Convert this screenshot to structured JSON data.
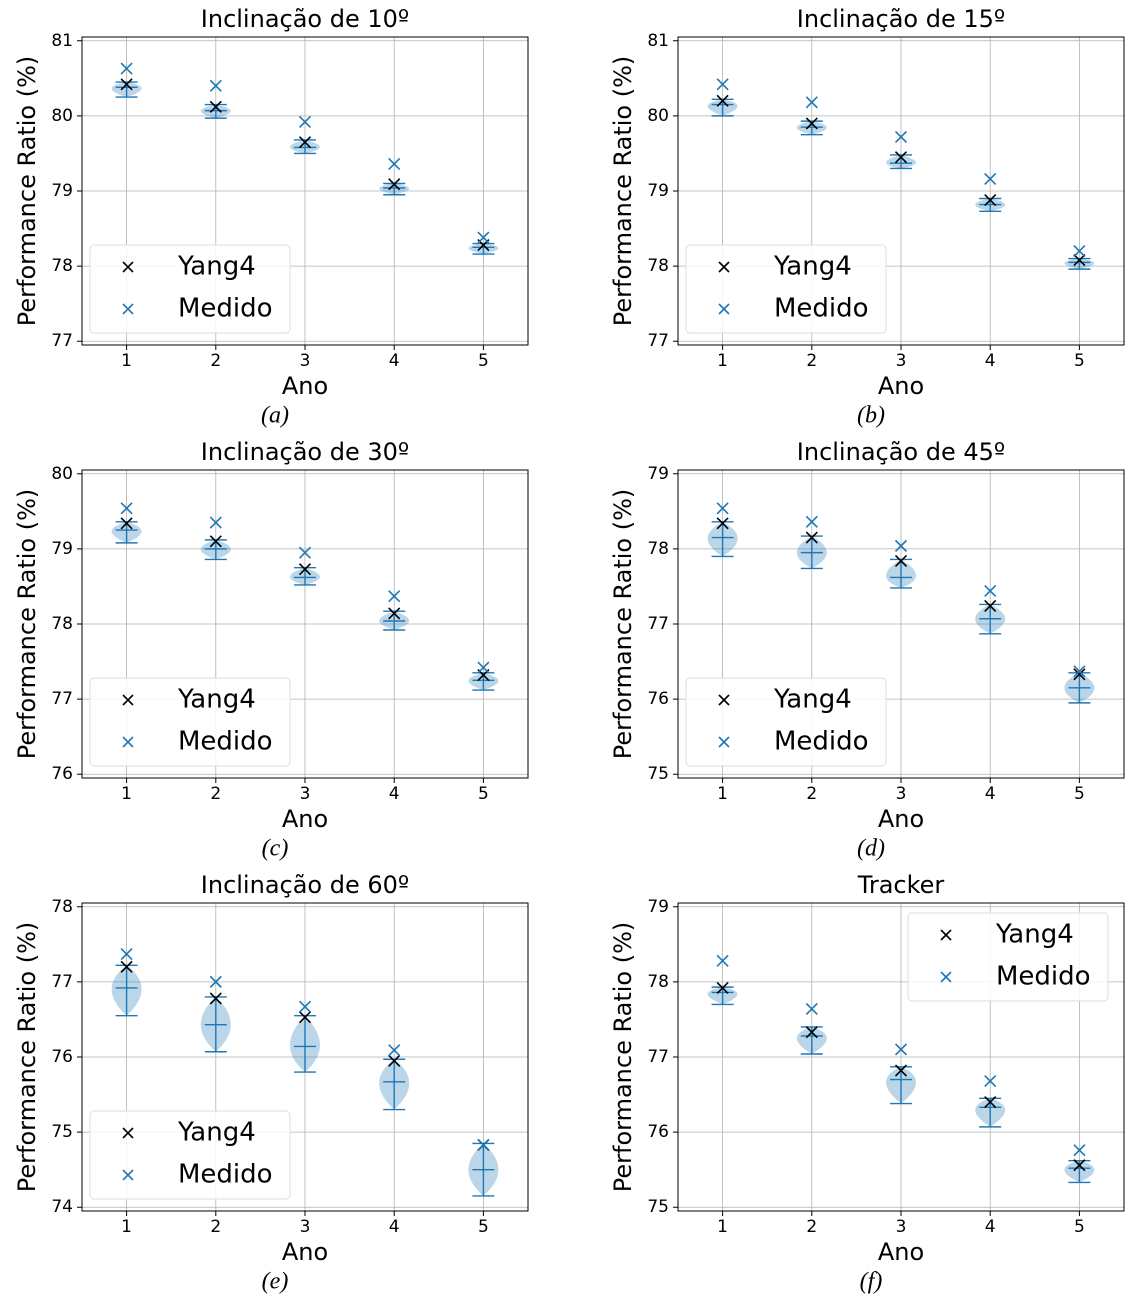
{
  "chart_data": [
    {
      "type": "violin",
      "title": "Inclinação de 10º",
      "caption": "(a)",
      "xlabel": "Ano",
      "ylabel": "Performance Ratio (%)",
      "x": [
        1,
        2,
        3,
        4,
        5
      ],
      "xlim": [
        0.5,
        5.5
      ],
      "xticks": [
        1,
        2,
        3,
        4,
        5
      ],
      "ylim": [
        76.95,
        81.05
      ],
      "yticks": [
        77,
        78,
        79,
        80,
        81
      ],
      "grid": true,
      "legend": "lower left",
      "violin": {
        "color": "#1f77b4",
        "min": [
          80.25,
          79.97,
          79.5,
          78.95,
          78.16
        ],
        "max": [
          80.45,
          80.15,
          79.68,
          79.1,
          78.3
        ],
        "mean": [
          80.38,
          80.07,
          79.58,
          79.04,
          78.25
        ]
      },
      "series": [
        {
          "name": "Yang4",
          "color": "#000000",
          "values": [
            80.42,
            80.12,
            79.65,
            79.09,
            78.28
          ]
        },
        {
          "name": "Medido",
          "color": "#1f77b4",
          "values": [
            80.63,
            80.4,
            79.92,
            79.36,
            78.38
          ]
        }
      ]
    },
    {
      "type": "violin",
      "title": "Inclinação de 15º",
      "caption": "(b)",
      "xlabel": "Ano",
      "ylabel": "Performance Ratio (%)",
      "x": [
        1,
        2,
        3,
        4,
        5
      ],
      "xlim": [
        0.5,
        5.5
      ],
      "xticks": [
        1,
        2,
        3,
        4,
        5
      ],
      "ylim": [
        76.95,
        81.05
      ],
      "yticks": [
        77,
        78,
        79,
        80,
        81
      ],
      "grid": true,
      "legend": "lower left",
      "violin": {
        "color": "#1f77b4",
        "min": [
          80.0,
          79.75,
          79.3,
          78.73,
          77.96
        ],
        "max": [
          80.22,
          79.93,
          79.48,
          78.9,
          78.1
        ],
        "mean": [
          80.15,
          79.85,
          79.37,
          78.82,
          78.05
        ]
      },
      "series": [
        {
          "name": "Yang4",
          "color": "#000000",
          "values": [
            80.2,
            79.9,
            79.45,
            78.88,
            78.08
          ]
        },
        {
          "name": "Medido",
          "color": "#1f77b4",
          "values": [
            80.42,
            80.18,
            79.72,
            79.16,
            78.2
          ]
        }
      ]
    },
    {
      "type": "violin",
      "title": "Inclinação de 30º",
      "caption": "(c)",
      "xlabel": "Ano",
      "ylabel": "Performance Ratio (%)",
      "x": [
        1,
        2,
        3,
        4,
        5
      ],
      "xlim": [
        0.5,
        5.5
      ],
      "xticks": [
        1,
        2,
        3,
        4,
        5
      ],
      "ylim": [
        75.95,
        80.05
      ],
      "yticks": [
        76,
        77,
        78,
        79,
        80
      ],
      "grid": true,
      "legend": "lower left",
      "violin": {
        "color": "#1f77b4",
        "min": [
          79.08,
          78.86,
          78.52,
          77.92,
          77.12
        ],
        "max": [
          79.36,
          79.12,
          78.75,
          78.17,
          77.35
        ],
        "mean": [
          79.25,
          79.0,
          78.62,
          78.04,
          77.25
        ]
      },
      "series": [
        {
          "name": "Yang4",
          "color": "#000000",
          "values": [
            79.34,
            79.1,
            78.73,
            78.14,
            77.32
          ]
        },
        {
          "name": "Medido",
          "color": "#1f77b4",
          "values": [
            79.54,
            79.35,
            78.95,
            78.37,
            77.42
          ]
        }
      ]
    },
    {
      "type": "violin",
      "title": "Inclinação de 45º",
      "caption": "(d)",
      "xlabel": "Ano",
      "ylabel": "Performance Ratio (%)",
      "x": [
        1,
        2,
        3,
        4,
        5
      ],
      "xlim": [
        0.5,
        5.5
      ],
      "xticks": [
        1,
        2,
        3,
        4,
        5
      ],
      "ylim": [
        74.95,
        79.05
      ],
      "yticks": [
        75,
        76,
        77,
        78,
        79
      ],
      "grid": true,
      "legend": "lower left",
      "violin": {
        "color": "#1f77b4",
        "min": [
          77.9,
          77.74,
          77.48,
          76.87,
          75.95
        ],
        "max": [
          78.36,
          78.17,
          77.86,
          77.26,
          76.35
        ],
        "mean": [
          78.15,
          77.95,
          77.62,
          77.07,
          76.15
        ]
      },
      "series": [
        {
          "name": "Yang4",
          "color": "#000000",
          "values": [
            78.34,
            78.15,
            77.84,
            77.24,
            76.33
          ]
        },
        {
          "name": "Medido",
          "color": "#1f77b4",
          "values": [
            78.54,
            78.36,
            78.04,
            77.44,
            76.37
          ]
        }
      ]
    },
    {
      "type": "violin",
      "title": "Inclinação de 60º",
      "caption": "(e)",
      "xlabel": "Ano",
      "ylabel": "Performance Ratio (%)",
      "x": [
        1,
        2,
        3,
        4,
        5
      ],
      "xlim": [
        0.5,
        5.5
      ],
      "xticks": [
        1,
        2,
        3,
        4,
        5
      ],
      "ylim": [
        73.95,
        78.05
      ],
      "yticks": [
        74,
        75,
        76,
        77,
        78
      ],
      "grid": true,
      "legend": "lower left",
      "violin": {
        "color": "#1f77b4",
        "min": [
          76.55,
          76.07,
          75.8,
          75.3,
          74.15
        ],
        "max": [
          77.22,
          76.8,
          76.55,
          75.97,
          74.85
        ],
        "mean": [
          76.92,
          76.43,
          76.14,
          75.67,
          74.5
        ]
      },
      "series": [
        {
          "name": "Yang4",
          "color": "#000000",
          "values": [
            77.2,
            76.78,
            76.53,
            75.95,
            74.83
          ]
        },
        {
          "name": "Medido",
          "color": "#1f77b4",
          "values": [
            77.37,
            77.0,
            76.67,
            76.09,
            74.83
          ]
        }
      ]
    },
    {
      "type": "violin",
      "title": "Tracker",
      "caption": "(f)",
      "xlabel": "Ano",
      "ylabel": "Performance Ratio (%)",
      "x": [
        1,
        2,
        3,
        4,
        5
      ],
      "xlim": [
        0.5,
        5.5
      ],
      "xticks": [
        1,
        2,
        3,
        4,
        5
      ],
      "ylim": [
        74.95,
        79.05
      ],
      "yticks": [
        75,
        76,
        77,
        78,
        79
      ],
      "grid": true,
      "legend": "upper right",
      "violin": {
        "color": "#1f77b4",
        "min": [
          77.7,
          77.04,
          76.38,
          76.07,
          75.33
        ],
        "max": [
          77.93,
          77.4,
          76.87,
          76.45,
          75.62
        ],
        "mean": [
          77.86,
          77.28,
          76.7,
          76.33,
          75.52
        ]
      },
      "series": [
        {
          "name": "Yang4",
          "color": "#000000",
          "values": [
            77.92,
            77.33,
            76.82,
            76.4,
            75.56
          ]
        },
        {
          "name": "Medido",
          "color": "#1f77b4",
          "values": [
            78.28,
            77.64,
            77.1,
            76.68,
            75.76
          ]
        }
      ]
    }
  ]
}
